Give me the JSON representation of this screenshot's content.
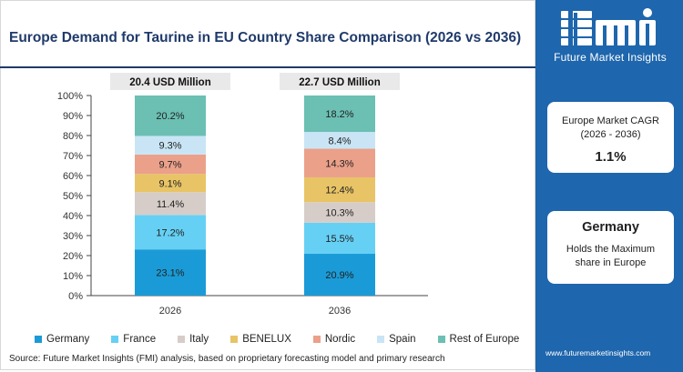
{
  "title": "Europe Demand for Taurine in EU Country Share Comparison (2026 vs 2036)",
  "source": "Source: Future Market Insights (FMI) analysis, based on proprietary forecasting model and primary research",
  "website": "www.futuremarketinsights.com",
  "logo": {
    "mark": "fmi",
    "subtitle": "Future Market Insights"
  },
  "cards": {
    "cagr": {
      "line1": "Europe Market CAGR",
      "line2": "(2026 - 2036)",
      "value": "1.1%"
    },
    "leader": {
      "country": "Germany",
      "line1": "Holds the Maximum",
      "line2": "share in Europe"
    }
  },
  "colors": {
    "panel": "#1e66ad",
    "title": "#1f3a6b"
  },
  "chart_data": {
    "type": "bar",
    "stacked": true,
    "categories": [
      "2026",
      "2036"
    ],
    "totals": [
      "20.4 USD Million",
      "22.7 USD Million"
    ],
    "ylim": [
      0,
      100
    ],
    "yticks": [
      "0%",
      "10%",
      "20%",
      "30%",
      "40%",
      "50%",
      "60%",
      "70%",
      "80%",
      "90%",
      "100%"
    ],
    "series": [
      {
        "name": "Germany",
        "color": "#1a9bd7",
        "values": [
          23.1,
          20.9
        ],
        "labels": [
          "23.1%",
          "20.9%"
        ]
      },
      {
        "name": "France",
        "color": "#66d0f4",
        "values": [
          17.2,
          15.5
        ],
        "labels": [
          "17.2%",
          "15.5%"
        ]
      },
      {
        "name": "Italy",
        "color": "#d6cdc8",
        "values": [
          11.4,
          10.3
        ],
        "labels": [
          "11.4%",
          "10.3%"
        ]
      },
      {
        "name": "BENELUX",
        "color": "#e8c466",
        "values": [
          9.1,
          12.4
        ],
        "labels": [
          "9.1%",
          "12.4%"
        ]
      },
      {
        "name": "Nordic",
        "color": "#eba08a",
        "values": [
          9.7,
          14.3
        ],
        "labels": [
          "9.7%",
          "14.3%"
        ]
      },
      {
        "name": "Spain",
        "color": "#c9e5f5",
        "values": [
          9.3,
          8.4
        ],
        "labels": [
          "9.3%",
          "8.4%"
        ]
      },
      {
        "name": "Rest of Europe",
        "color": "#6bbfb3",
        "values": [
          20.2,
          18.2
        ],
        "labels": [
          "20.2%",
          "18.2%"
        ]
      }
    ]
  }
}
